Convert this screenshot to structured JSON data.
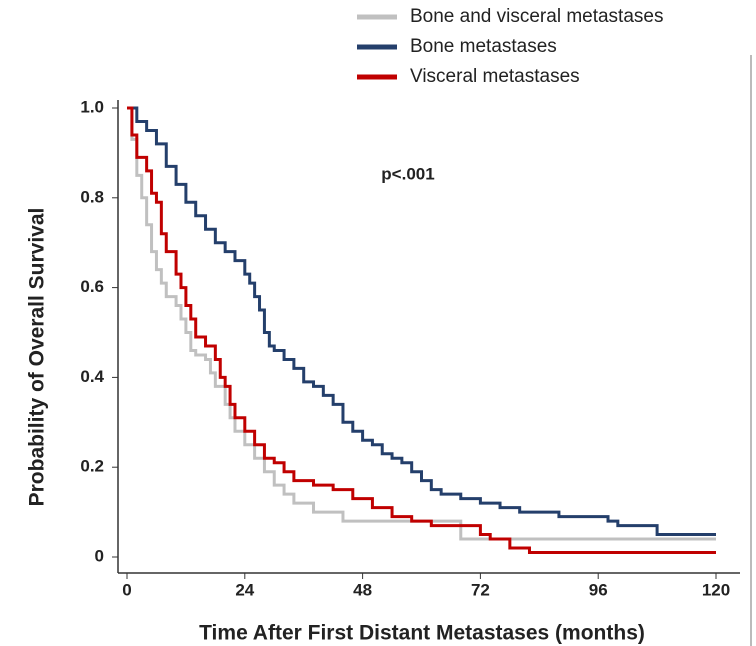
{
  "chart_data": {
    "type": "step",
    "xlabel": "Time After First Distant Metastases (months)",
    "ylabel": "Probability of Overall Survival",
    "annotation": "p<.001",
    "legend": "top-right",
    "xlim": [
      0,
      120
    ],
    "ylim": [
      0,
      1
    ],
    "xticks": [
      0,
      24,
      48,
      72,
      96,
      120
    ],
    "yticks": [
      0,
      0.2,
      0.4,
      0.6,
      0.8,
      {
        "value": 1,
        "label": "1.0"
      }
    ],
    "series": [
      {
        "name": "Bone and visceral metastases",
        "color": "#c0c0c0",
        "x": [
          0,
          1,
          2,
          3,
          4,
          5,
          6,
          7,
          8,
          10,
          11,
          12,
          13,
          14,
          16,
          17,
          18,
          20,
          21,
          22,
          24,
          26,
          28,
          30,
          32,
          34,
          38,
          44,
          68,
          120
        ],
        "values": [
          1.0,
          0.93,
          0.85,
          0.8,
          0.74,
          0.68,
          0.64,
          0.61,
          0.58,
          0.56,
          0.53,
          0.5,
          0.46,
          0.45,
          0.44,
          0.41,
          0.38,
          0.34,
          0.31,
          0.28,
          0.25,
          0.22,
          0.19,
          0.16,
          0.14,
          0.12,
          0.1,
          0.08,
          0.04,
          0.04
        ]
      },
      {
        "name": "Bone metastases",
        "color": "#243f6b",
        "x": [
          0,
          2,
          4,
          6,
          8,
          10,
          12,
          14,
          16,
          18,
          20,
          22,
          24,
          25,
          26,
          27,
          28,
          29,
          30,
          32,
          34,
          36,
          38,
          40,
          42,
          44,
          46,
          48,
          50,
          52,
          54,
          56,
          58,
          60,
          62,
          64,
          68,
          72,
          76,
          80,
          88,
          98,
          100,
          108,
          120
        ],
        "values": [
          1.0,
          0.97,
          0.95,
          0.92,
          0.87,
          0.83,
          0.79,
          0.76,
          0.73,
          0.7,
          0.68,
          0.66,
          0.63,
          0.61,
          0.58,
          0.55,
          0.5,
          0.47,
          0.46,
          0.44,
          0.42,
          0.39,
          0.38,
          0.36,
          0.34,
          0.3,
          0.28,
          0.26,
          0.25,
          0.23,
          0.22,
          0.21,
          0.19,
          0.17,
          0.15,
          0.14,
          0.13,
          0.12,
          0.11,
          0.1,
          0.09,
          0.08,
          0.07,
          0.05,
          0.05
        ]
      },
      {
        "name": "Visceral metastases",
        "color": "#c00000",
        "x": [
          0,
          1,
          2,
          4,
          5,
          6,
          7,
          8,
          10,
          11,
          12,
          13,
          14,
          16,
          18,
          19,
          20,
          21,
          22,
          24,
          26,
          28,
          30,
          32,
          34,
          38,
          42,
          46,
          50,
          54,
          58,
          62,
          72,
          74,
          78,
          82,
          120
        ],
        "values": [
          1.0,
          0.94,
          0.89,
          0.86,
          0.81,
          0.79,
          0.72,
          0.68,
          0.63,
          0.6,
          0.56,
          0.53,
          0.49,
          0.47,
          0.44,
          0.4,
          0.38,
          0.34,
          0.31,
          0.28,
          0.25,
          0.22,
          0.21,
          0.19,
          0.17,
          0.16,
          0.15,
          0.13,
          0.11,
          0.09,
          0.08,
          0.07,
          0.05,
          0.04,
          0.02,
          0.01,
          0.01
        ]
      }
    ]
  }
}
